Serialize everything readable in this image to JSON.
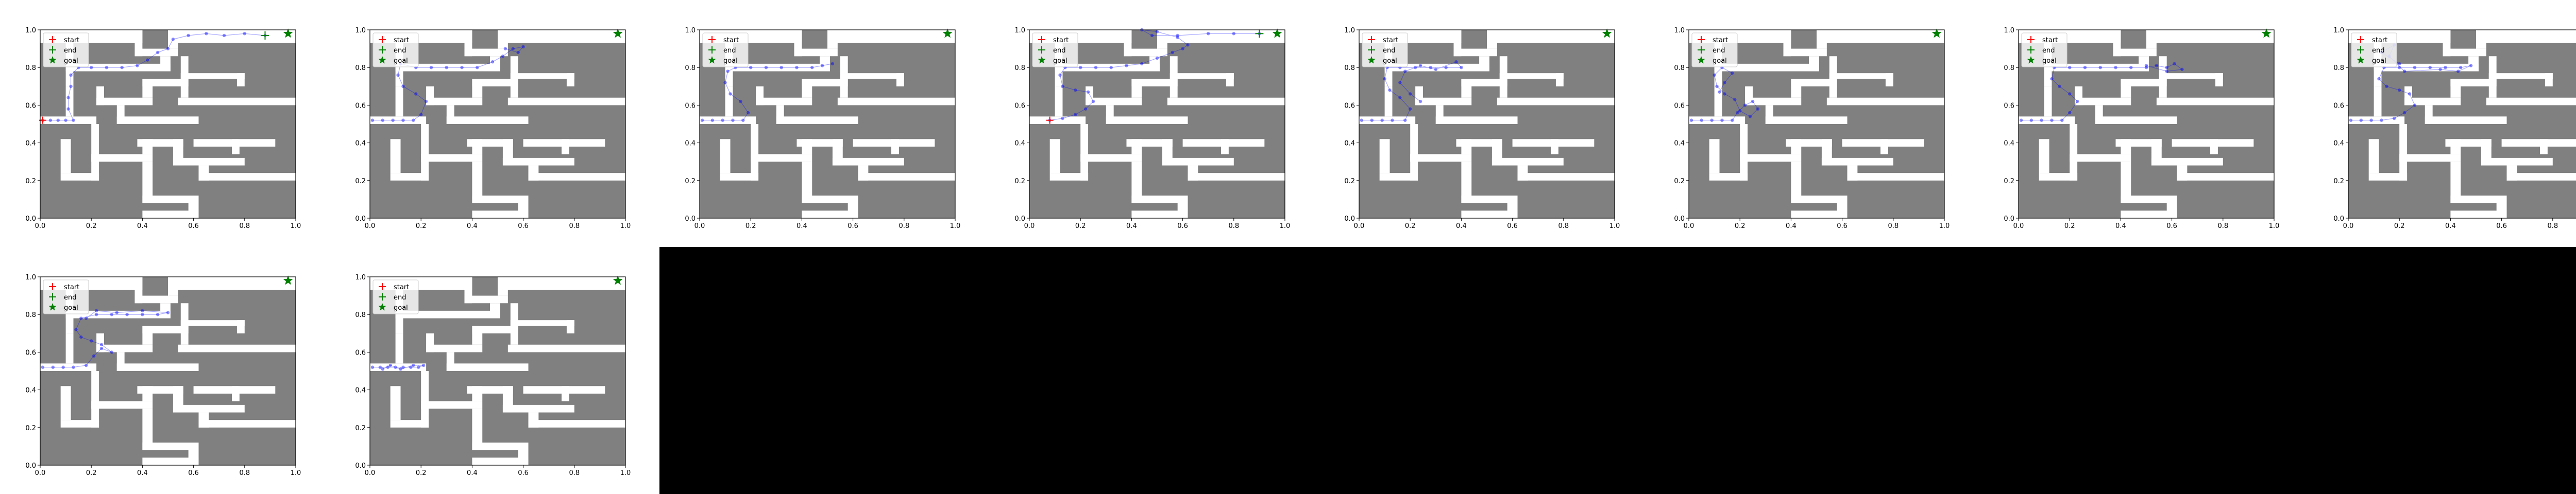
{
  "figure": {
    "background": "#ffffff",
    "empty_region_color": "#000000"
  },
  "style": {
    "wall_color": "#808080",
    "corridor_color": "#ffffff",
    "trajectory_color": "#0000ff",
    "start_color": "#ff0000",
    "end_color": "#008000",
    "goal_color": "#008000"
  },
  "legend": [
    {
      "label": "start",
      "marker": "plus",
      "color": "#ff0000"
    },
    {
      "label": "end",
      "marker": "plus",
      "color": "#008000"
    },
    {
      "label": "goal",
      "marker": "star",
      "color": "#008000"
    }
  ],
  "maze": {
    "corridors": [
      [
        0.0,
        0.93,
        0.4,
        1.0
      ],
      [
        0.37,
        0.86,
        0.4,
        1.0
      ],
      [
        0.37,
        0.86,
        0.54,
        0.9
      ],
      [
        0.5,
        0.9,
        0.54,
        1.0
      ],
      [
        0.5,
        0.93,
        1.0,
        1.0
      ],
      [
        0.1,
        0.7,
        0.13,
        0.93
      ],
      [
        0.1,
        0.78,
        0.51,
        0.82
      ],
      [
        0.47,
        0.78,
        0.51,
        0.86
      ],
      [
        0.55,
        0.64,
        0.58,
        0.86
      ],
      [
        0.55,
        0.74,
        0.8,
        0.77
      ],
      [
        0.77,
        0.7,
        0.8,
        0.77
      ],
      [
        0.0,
        0.5,
        0.22,
        0.54
      ],
      [
        0.1,
        0.54,
        0.13,
        0.7
      ],
      [
        0.22,
        0.6,
        0.25,
        0.7
      ],
      [
        0.22,
        0.6,
        0.44,
        0.64
      ],
      [
        0.4,
        0.64,
        0.44,
        0.74
      ],
      [
        0.4,
        0.7,
        0.58,
        0.74
      ],
      [
        0.54,
        0.6,
        1.0,
        0.64
      ],
      [
        0.3,
        0.5,
        0.33,
        0.6
      ],
      [
        0.3,
        0.5,
        0.62,
        0.54
      ],
      [
        0.2,
        0.2,
        0.23,
        0.5
      ],
      [
        0.08,
        0.2,
        0.23,
        0.24
      ],
      [
        0.08,
        0.24,
        0.12,
        0.42
      ],
      [
        0.2,
        0.3,
        0.44,
        0.34
      ],
      [
        0.4,
        0.34,
        0.44,
        0.42
      ],
      [
        0.38,
        0.38,
        0.56,
        0.42
      ],
      [
        0.52,
        0.28,
        0.56,
        0.42
      ],
      [
        0.52,
        0.28,
        0.8,
        0.32
      ],
      [
        0.62,
        0.2,
        0.66,
        0.28
      ],
      [
        0.62,
        0.2,
        1.0,
        0.24
      ],
      [
        0.4,
        0.08,
        0.44,
        0.3
      ],
      [
        0.4,
        0.08,
        0.62,
        0.12
      ],
      [
        0.58,
        0.0,
        0.62,
        0.08
      ],
      [
        0.4,
        0.0,
        0.62,
        0.04
      ],
      [
        0.75,
        0.34,
        0.78,
        0.42
      ],
      [
        0.6,
        0.38,
        0.92,
        0.42
      ]
    ]
  },
  "axes": {
    "xlim": [
      0.0,
      1.0
    ],
    "ylim": [
      0.0,
      1.0
    ],
    "xticks": [
      "0.0",
      "0.2",
      "0.4",
      "0.6",
      "0.8",
      "1.0"
    ],
    "yticks": [
      "0.0",
      "0.2",
      "0.4",
      "0.6",
      "0.8",
      "1.0"
    ]
  },
  "chart_data": [
    {
      "type": "scatter",
      "goal": [
        0.97,
        0.98
      ],
      "start": [
        0.01,
        0.52
      ],
      "end": [
        0.88,
        0.97
      ],
      "trajectory": [
        [
          0.01,
          0.52
        ],
        [
          0.04,
          0.52
        ],
        [
          0.07,
          0.52
        ],
        [
          0.1,
          0.52
        ],
        [
          0.13,
          0.52
        ],
        [
          0.11,
          0.58
        ],
        [
          0.11,
          0.64
        ],
        [
          0.12,
          0.7
        ],
        [
          0.12,
          0.76
        ],
        [
          0.15,
          0.8
        ],
        [
          0.2,
          0.8
        ],
        [
          0.26,
          0.8
        ],
        [
          0.32,
          0.8
        ],
        [
          0.38,
          0.81
        ],
        [
          0.42,
          0.84
        ],
        [
          0.46,
          0.88
        ],
        [
          0.5,
          0.9
        ],
        [
          0.52,
          0.95
        ],
        [
          0.58,
          0.97
        ],
        [
          0.65,
          0.98
        ],
        [
          0.72,
          0.97
        ],
        [
          0.8,
          0.98
        ],
        [
          0.88,
          0.97
        ]
      ]
    },
    {
      "type": "scatter",
      "goal": [
        0.97,
        0.98
      ],
      "trajectory": [
        [
          0.01,
          0.52
        ],
        [
          0.05,
          0.52
        ],
        [
          0.09,
          0.52
        ],
        [
          0.13,
          0.52
        ],
        [
          0.17,
          0.52
        ],
        [
          0.2,
          0.55
        ],
        [
          0.22,
          0.62
        ],
        [
          0.18,
          0.66
        ],
        [
          0.13,
          0.7
        ],
        [
          0.11,
          0.76
        ],
        [
          0.12,
          0.82
        ],
        [
          0.18,
          0.8
        ],
        [
          0.24,
          0.8
        ],
        [
          0.3,
          0.8
        ],
        [
          0.36,
          0.8
        ],
        [
          0.42,
          0.8
        ],
        [
          0.48,
          0.83
        ],
        [
          0.52,
          0.86
        ],
        [
          0.56,
          0.9
        ],
        [
          0.6,
          0.91
        ],
        [
          0.58,
          0.88
        ],
        [
          0.53,
          0.9
        ]
      ]
    },
    {
      "type": "scatter",
      "goal": [
        0.97,
        0.98
      ],
      "trajectory": [
        [
          0.01,
          0.52
        ],
        [
          0.05,
          0.52
        ],
        [
          0.09,
          0.52
        ],
        [
          0.13,
          0.52
        ],
        [
          0.17,
          0.52
        ],
        [
          0.19,
          0.56
        ],
        [
          0.16,
          0.62
        ],
        [
          0.12,
          0.66
        ],
        [
          0.1,
          0.72
        ],
        [
          0.11,
          0.78
        ],
        [
          0.14,
          0.8
        ],
        [
          0.2,
          0.8
        ],
        [
          0.26,
          0.8
        ],
        [
          0.32,
          0.8
        ],
        [
          0.38,
          0.8
        ],
        [
          0.44,
          0.8
        ],
        [
          0.48,
          0.81
        ],
        [
          0.52,
          0.82
        ]
      ]
    },
    {
      "type": "scatter",
      "goal": [
        0.97,
        0.98
      ],
      "start": [
        0.08,
        0.52
      ],
      "end": [
        0.9,
        0.98
      ],
      "trajectory": [
        [
          0.08,
          0.52
        ],
        [
          0.13,
          0.53
        ],
        [
          0.18,
          0.55
        ],
        [
          0.22,
          0.58
        ],
        [
          0.25,
          0.62
        ],
        [
          0.23,
          0.67
        ],
        [
          0.18,
          0.68
        ],
        [
          0.13,
          0.7
        ],
        [
          0.12,
          0.76
        ],
        [
          0.14,
          0.8
        ],
        [
          0.2,
          0.8
        ],
        [
          0.26,
          0.8
        ],
        [
          0.32,
          0.8
        ],
        [
          0.38,
          0.81
        ],
        [
          0.44,
          0.82
        ],
        [
          0.5,
          0.85
        ],
        [
          0.56,
          0.88
        ],
        [
          0.6,
          0.9
        ],
        [
          0.62,
          0.92
        ],
        [
          0.58,
          0.96
        ],
        [
          0.5,
          0.99
        ],
        [
          0.44,
          1.0
        ],
        [
          0.48,
          0.97
        ],
        [
          0.58,
          0.97
        ],
        [
          0.7,
          0.98
        ],
        [
          0.8,
          0.98
        ],
        [
          0.9,
          0.98
        ]
      ]
    },
    {
      "type": "scatter",
      "goal": [
        0.97,
        0.98
      ],
      "trajectory": [
        [
          0.01,
          0.52
        ],
        [
          0.05,
          0.52
        ],
        [
          0.09,
          0.52
        ],
        [
          0.13,
          0.52
        ],
        [
          0.18,
          0.52
        ],
        [
          0.2,
          0.58
        ],
        [
          0.16,
          0.64
        ],
        [
          0.12,
          0.68
        ],
        [
          0.1,
          0.74
        ],
        [
          0.11,
          0.8
        ],
        [
          0.16,
          0.8
        ],
        [
          0.22,
          0.8
        ],
        [
          0.28,
          0.8
        ],
        [
          0.34,
          0.8
        ],
        [
          0.4,
          0.8
        ],
        [
          0.38,
          0.83
        ],
        [
          0.3,
          0.79
        ],
        [
          0.24,
          0.81
        ],
        [
          0.18,
          0.78
        ],
        [
          0.16,
          0.72
        ],
        [
          0.2,
          0.66
        ],
        [
          0.24,
          0.62
        ]
      ]
    },
    {
      "type": "scatter",
      "goal": [
        0.97,
        0.98
      ],
      "trajectory": [
        [
          0.01,
          0.52
        ],
        [
          0.05,
          0.52
        ],
        [
          0.09,
          0.52
        ],
        [
          0.13,
          0.52
        ],
        [
          0.17,
          0.52
        ],
        [
          0.19,
          0.56
        ],
        [
          0.22,
          0.6
        ],
        [
          0.25,
          0.62
        ],
        [
          0.27,
          0.58
        ],
        [
          0.24,
          0.54
        ],
        [
          0.2,
          0.57
        ],
        [
          0.18,
          0.63
        ],
        [
          0.14,
          0.66
        ],
        [
          0.11,
          0.7
        ],
        [
          0.1,
          0.76
        ],
        [
          0.13,
          0.8
        ],
        [
          0.17,
          0.77
        ],
        [
          0.14,
          0.72
        ],
        [
          0.12,
          0.67
        ]
      ]
    },
    {
      "type": "scatter",
      "goal": [
        0.97,
        0.98
      ],
      "trajectory": [
        [
          0.01,
          0.52
        ],
        [
          0.05,
          0.52
        ],
        [
          0.09,
          0.52
        ],
        [
          0.13,
          0.52
        ],
        [
          0.17,
          0.52
        ],
        [
          0.2,
          0.56
        ],
        [
          0.23,
          0.62
        ],
        [
          0.2,
          0.66
        ],
        [
          0.16,
          0.7
        ],
        [
          0.13,
          0.74
        ],
        [
          0.14,
          0.8
        ],
        [
          0.2,
          0.8
        ],
        [
          0.26,
          0.8
        ],
        [
          0.32,
          0.8
        ],
        [
          0.38,
          0.8
        ],
        [
          0.44,
          0.8
        ],
        [
          0.5,
          0.8
        ],
        [
          0.54,
          0.81
        ],
        [
          0.58,
          0.8
        ],
        [
          0.61,
          0.82
        ],
        [
          0.64,
          0.79
        ],
        [
          0.58,
          0.78
        ],
        [
          0.5,
          0.81
        ]
      ]
    },
    {
      "type": "scatter",
      "goal": [
        0.97,
        0.98
      ],
      "trajectory": [
        [
          0.01,
          0.52
        ],
        [
          0.05,
          0.52
        ],
        [
          0.09,
          0.52
        ],
        [
          0.13,
          0.52
        ],
        [
          0.18,
          0.53
        ],
        [
          0.22,
          0.56
        ],
        [
          0.26,
          0.6
        ],
        [
          0.24,
          0.66
        ],
        [
          0.2,
          0.68
        ],
        [
          0.15,
          0.7
        ],
        [
          0.12,
          0.74
        ],
        [
          0.14,
          0.8
        ],
        [
          0.2,
          0.8
        ],
        [
          0.26,
          0.8
        ],
        [
          0.32,
          0.8
        ],
        [
          0.38,
          0.8
        ],
        [
          0.44,
          0.8
        ],
        [
          0.48,
          0.81
        ],
        [
          0.43,
          0.78
        ],
        [
          0.36,
          0.79
        ],
        [
          0.22,
          0.78
        ],
        [
          0.16,
          0.86
        ],
        [
          0.18,
          0.92
        ],
        [
          0.13,
          0.88
        ],
        [
          0.2,
          0.82
        ]
      ]
    },
    {
      "type": "scatter",
      "goal": [
        0.97,
        0.98
      ],
      "trajectory": [
        [
          0.01,
          0.52
        ],
        [
          0.05,
          0.52
        ],
        [
          0.09,
          0.52
        ],
        [
          0.13,
          0.52
        ],
        [
          0.18,
          0.53
        ],
        [
          0.21,
          0.58
        ],
        [
          0.24,
          0.62
        ],
        [
          0.28,
          0.6
        ],
        [
          0.24,
          0.64
        ],
        [
          0.2,
          0.66
        ],
        [
          0.16,
          0.68
        ],
        [
          0.14,
          0.72
        ],
        [
          0.16,
          0.78
        ],
        [
          0.22,
          0.8
        ],
        [
          0.28,
          0.8
        ],
        [
          0.34,
          0.8
        ],
        [
          0.4,
          0.8
        ],
        [
          0.46,
          0.8
        ],
        [
          0.5,
          0.81
        ],
        [
          0.4,
          0.82
        ],
        [
          0.3,
          0.81
        ],
        [
          0.22,
          0.82
        ],
        [
          0.18,
          0.78
        ]
      ]
    },
    {
      "type": "scatter",
      "goal": [
        0.97,
        0.98
      ],
      "trajectory": [
        [
          0.01,
          0.52
        ],
        [
          0.04,
          0.52
        ],
        [
          0.07,
          0.52
        ],
        [
          0.1,
          0.52
        ],
        [
          0.13,
          0.52
        ],
        [
          0.16,
          0.52
        ],
        [
          0.19,
          0.52
        ],
        [
          0.21,
          0.53
        ],
        [
          0.17,
          0.53
        ],
        [
          0.12,
          0.51
        ],
        [
          0.08,
          0.53
        ],
        [
          0.05,
          0.51
        ]
      ]
    }
  ]
}
